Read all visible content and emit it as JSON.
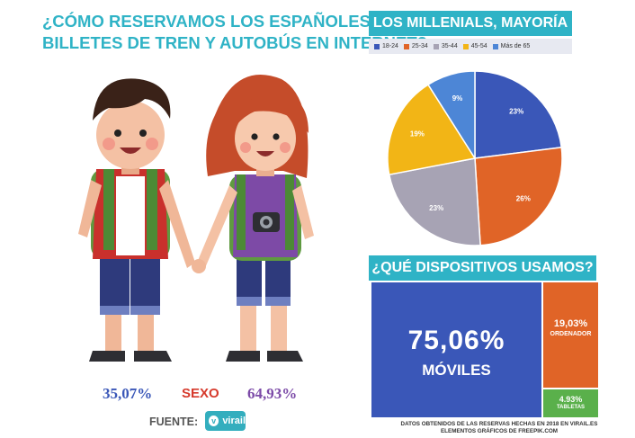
{
  "title": {
    "line1": "¿CÓMO RESERVAMOS LOS ESPAÑOLES",
    "line2": "BILLETES DE TREN Y AUTOBÚS EN INTERNET?"
  },
  "sexo": {
    "label": "SEXO",
    "male_pct": "35,07%",
    "female_pct": "64,93%"
  },
  "source": {
    "label": "FUENTE:",
    "logo_text": "virail"
  },
  "colors": {
    "teal": "#2fb3c6",
    "blue": "#3a57b8",
    "orange": "#e06427",
    "gray": "#a7a3b4",
    "yellow": "#f2b516",
    "lightblue": "#4d86d6",
    "green": "#5ab04b"
  },
  "chart_data": [
    {
      "type": "pie",
      "title": "LOS MILLENIALS, MAYORÍA",
      "categories": [
        "18-24",
        "25-34",
        "35-44",
        "45-54",
        "Más de 65"
      ],
      "values": [
        23,
        26,
        23,
        19,
        9
      ],
      "labels": [
        "23%",
        "26%",
        "23%",
        "19%",
        "9%"
      ],
      "colors": [
        "#3a57b8",
        "#e06427",
        "#a7a3b4",
        "#f2b516",
        "#4d86d6"
      ],
      "legend": "top"
    },
    {
      "type": "table",
      "title": "¿QUÉ DISPOSITIVOS USAMOS?",
      "categories": [
        "MÓVILES",
        "ORDENADOR",
        "TABLETAS"
      ],
      "values": [
        75.06,
        19.03,
        4.93
      ],
      "labels": [
        "75,06%",
        "19,03%",
        "4.93%"
      ]
    }
  ],
  "footnote": {
    "line1": "DATOS OBTENIDOS DE LAS RESERVAS HECHAS EN 2018 EN VIRAIL.ES",
    "line2": "ELEMENTOS GRÁFICOS DE FREEPIK.COM"
  }
}
